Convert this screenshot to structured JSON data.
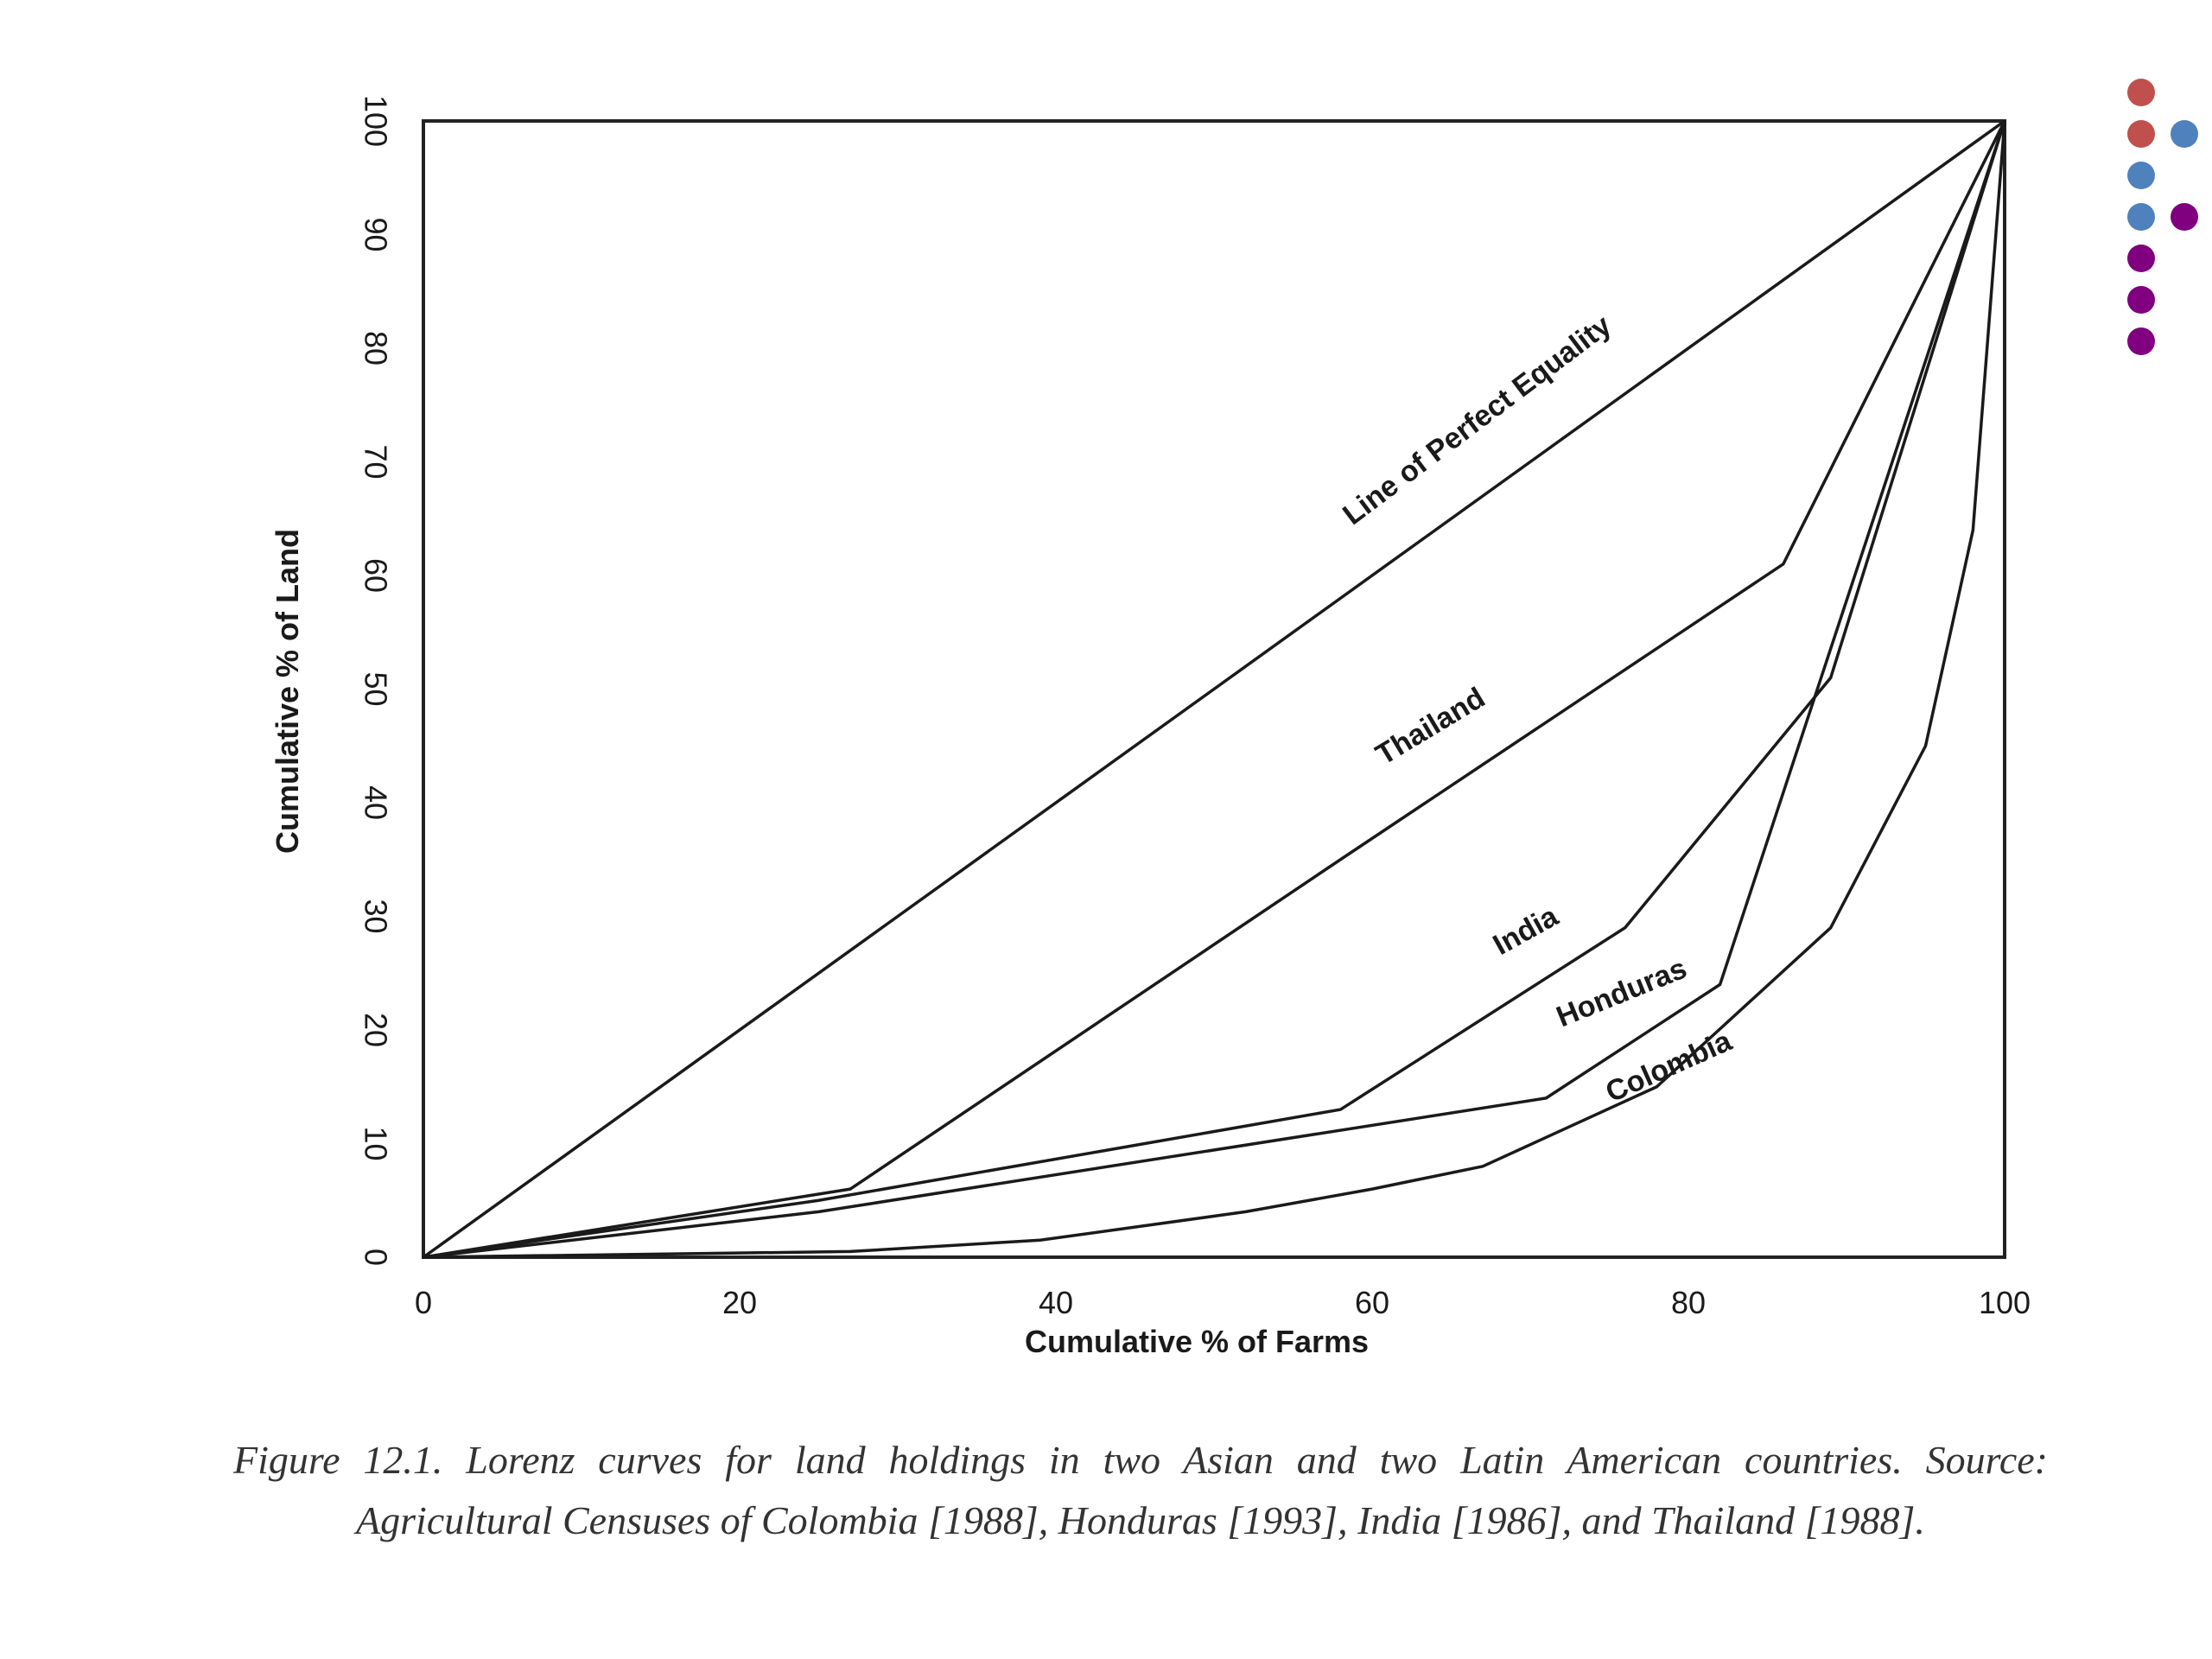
{
  "chart_data": {
    "type": "line",
    "xlabel": "Cumulative % of Farms",
    "ylabel": "Cumulative % of Land",
    "xlim": [
      0,
      100
    ],
    "ylim": [
      0,
      100
    ],
    "x_ticks": [
      "0",
      "20",
      "40",
      "60",
      "80",
      "100"
    ],
    "y_ticks": [
      "0",
      "10",
      "20",
      "30",
      "40",
      "50",
      "60",
      "70",
      "80",
      "90",
      "100"
    ],
    "grid": false,
    "legend": "none",
    "series": [
      {
        "name": "Line of Perfect Equality",
        "x": [
          0,
          100
        ],
        "y": [
          0,
          100
        ]
      },
      {
        "name": "Thailand",
        "x": [
          0,
          27,
          58,
          86,
          100
        ],
        "y": [
          0,
          6,
          35,
          61,
          100
        ]
      },
      {
        "name": "India",
        "x": [
          0,
          25,
          58,
          76,
          89,
          100
        ],
        "y": [
          0,
          5,
          13,
          29,
          51,
          100
        ]
      },
      {
        "name": "Honduras",
        "x": [
          0,
          25,
          71,
          82,
          100
        ],
        "y": [
          0,
          4,
          14,
          24,
          100
        ]
      },
      {
        "name": "Colombia",
        "x": [
          0,
          27,
          39,
          52,
          60,
          67,
          78,
          89,
          95,
          98,
          100
        ],
        "y": [
          0,
          0.5,
          1.5,
          4,
          6,
          8,
          15,
          29,
          45,
          64,
          100
        ]
      }
    ]
  },
  "caption": "Figure 12.1. Lorenz curves for land holdings in two Asian and two Latin American countries. Source: Agricultural Censuses of Colombia [1988], Honduras [1993], India [1986], and Thailand [1988].",
  "decoration": {
    "dots": [
      {
        "color": "#c0504d",
        "col": 0,
        "row": 0
      },
      {
        "color": "#c0504d",
        "col": 0,
        "row": 1
      },
      {
        "color": "#4f81bd",
        "col": 1,
        "row": 1
      },
      {
        "color": "#4f81bd",
        "col": 0,
        "row": 2
      },
      {
        "color": "#4f81bd",
        "col": 0,
        "row": 3
      },
      {
        "color": "#800080",
        "col": 1,
        "row": 3
      },
      {
        "color": "#800080",
        "col": 0,
        "row": 4
      },
      {
        "color": "#800080",
        "col": 0,
        "row": 5
      },
      {
        "color": "#800080",
        "col": 0,
        "row": 6
      }
    ]
  }
}
